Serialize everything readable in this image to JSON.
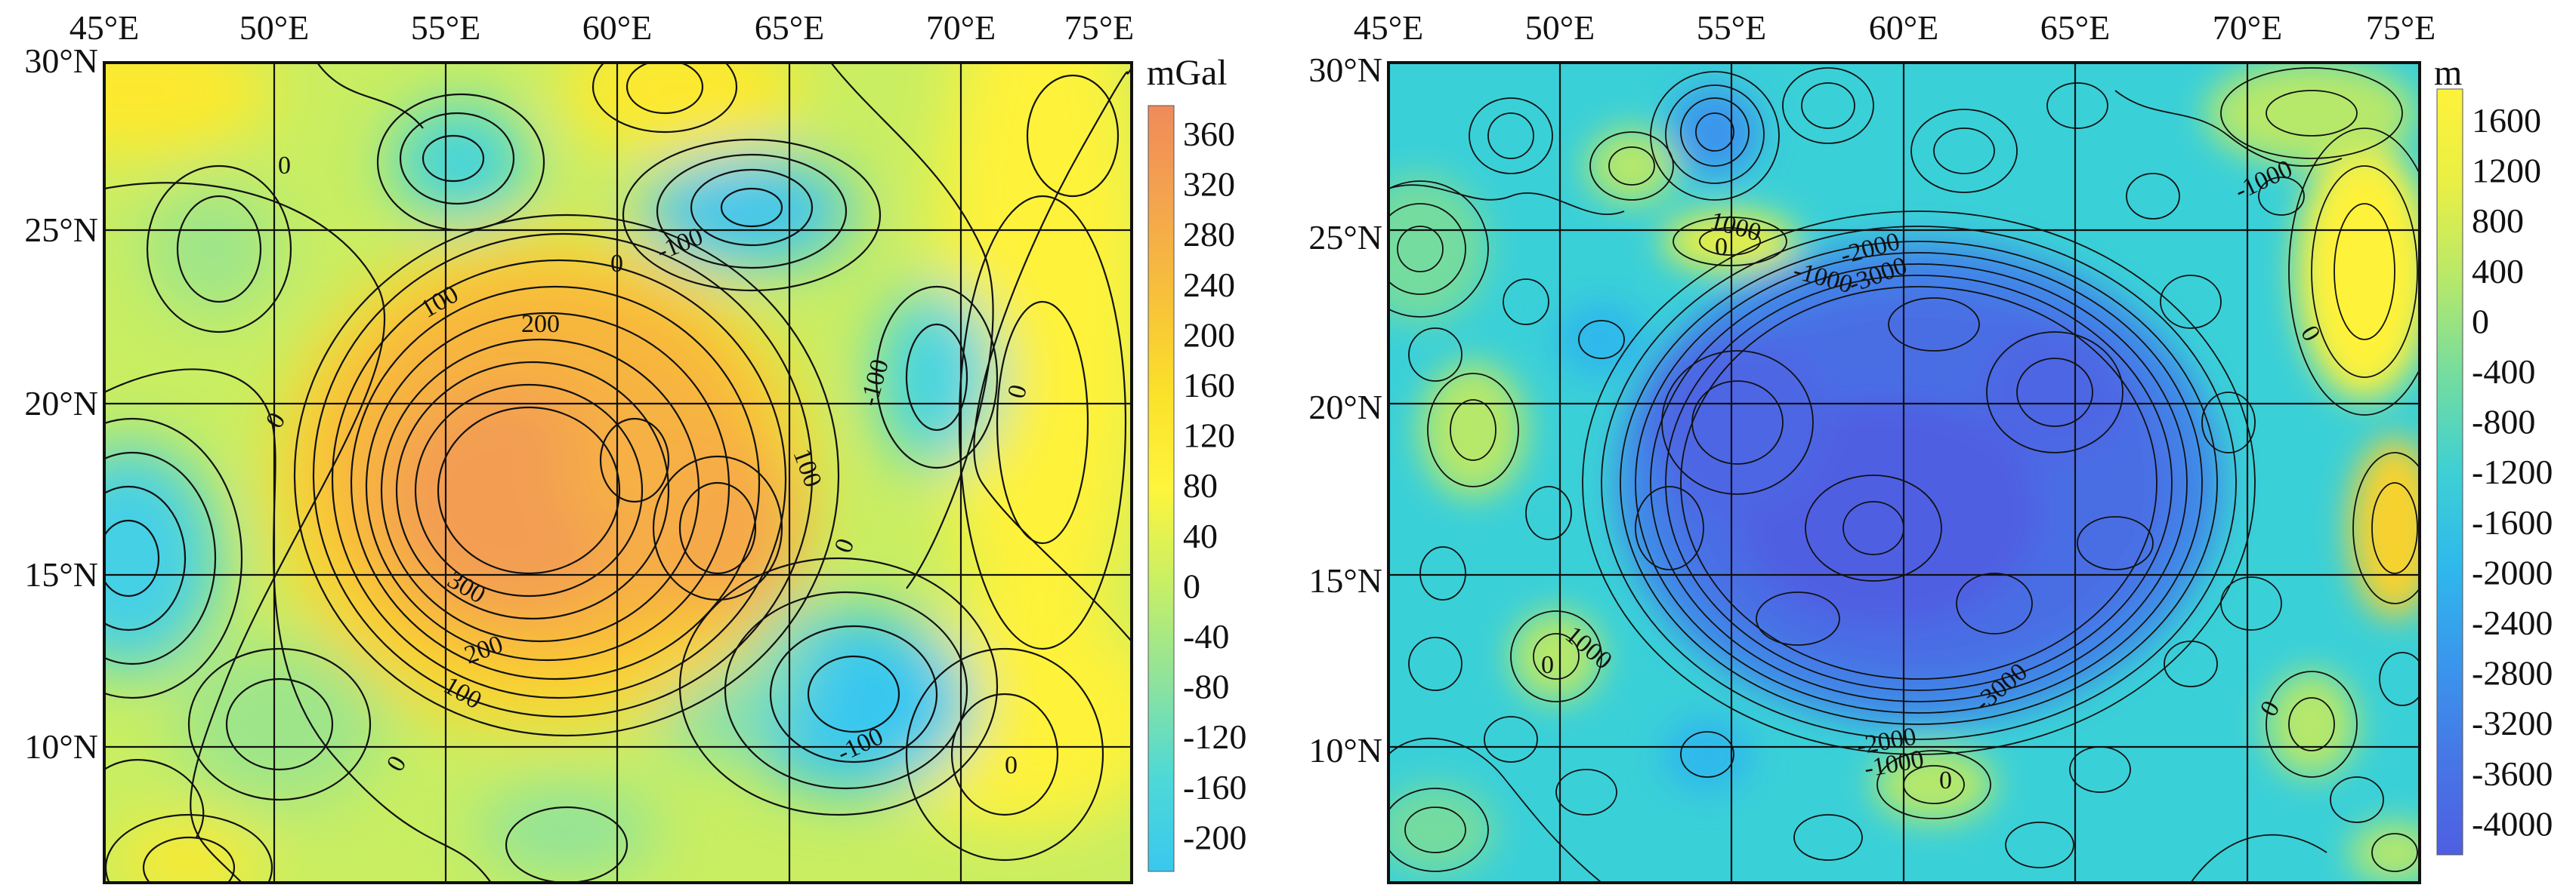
{
  "figure": {
    "panels": [
      {
        "id": "gravity",
        "x_ticks": [
          "45°E",
          "50°E",
          "55°E",
          "60°E",
          "65°E",
          "70°E",
          "75°E"
        ],
        "y_ticks": [
          "30°N",
          "25°N",
          "20°N",
          "15°N",
          "10°N"
        ],
        "colorbar": {
          "unit": "mGal",
          "ticks": [
            "360",
            "320",
            "280",
            "240",
            "200",
            "160",
            "120",
            "80",
            "40",
            "0",
            "-40",
            "-80",
            "-120",
            "-160",
            "-200"
          ],
          "colors": [
            "#f08a5a",
            "#f4a44e",
            "#f7c13a",
            "#fbe12a",
            "#fef53c",
            "#c7ef66",
            "#8fe39b",
            "#4fd9d6",
            "#39c8ef"
          ]
        },
        "contour_labels": [
          "0",
          "-100",
          "0",
          "100",
          "200",
          "-100",
          "0",
          "0",
          "100",
          "0",
          "300",
          "200",
          "100",
          "-100",
          "0",
          "0"
        ]
      },
      {
        "id": "topography",
        "x_ticks": [
          "45°E",
          "50°E",
          "55°E",
          "60°E",
          "65°E",
          "70°E",
          "75°E"
        ],
        "y_ticks": [
          "30°N",
          "25°N",
          "20°N",
          "15°N",
          "10°N"
        ],
        "colorbar": {
          "unit": "m",
          "ticks": [
            "1600",
            "1200",
            "800",
            "400",
            "0",
            "-400",
            "-800",
            "-1200",
            "-1600",
            "-2000",
            "-2400",
            "-2800",
            "-3200",
            "-3600",
            "-4000"
          ],
          "colors": [
            "#fef23a",
            "#e9ef45",
            "#b6e86b",
            "#74dc9f",
            "#3ed0d4",
            "#2fb8ec",
            "#3a96ec",
            "#4677e6",
            "#4f5ee2"
          ]
        },
        "contour_labels": [
          "1000",
          "-1000",
          "0",
          "-1000",
          "-2000",
          "-3000",
          "0",
          "1000",
          "0",
          "-3000",
          "-2000",
          "-1000",
          "0",
          "0"
        ]
      }
    ]
  }
}
